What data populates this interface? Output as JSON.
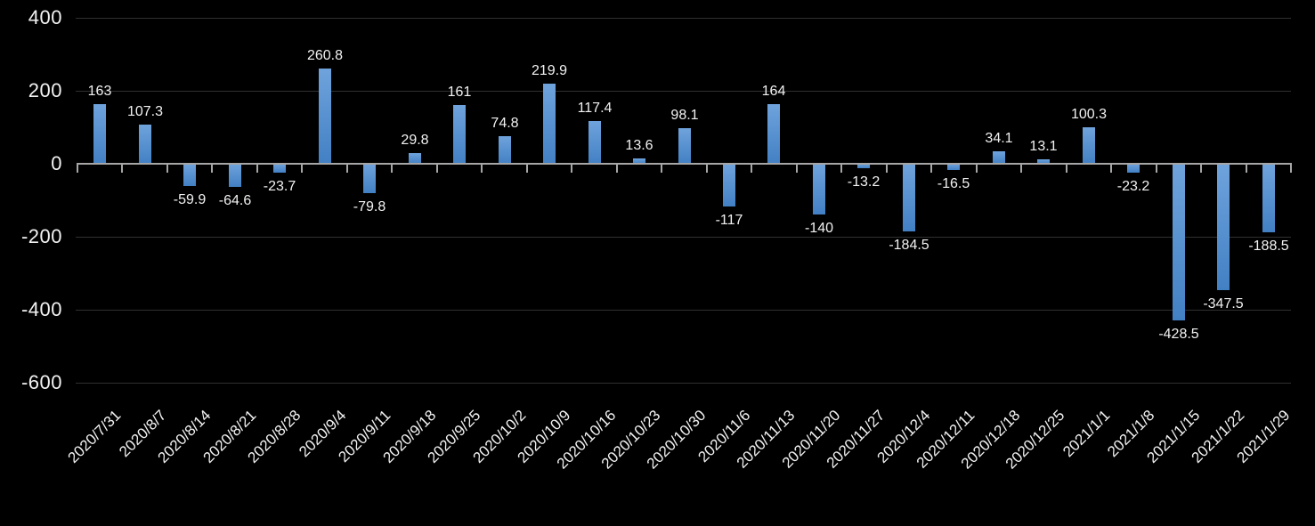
{
  "chart_data": {
    "type": "bar",
    "title": "",
    "xlabel": "",
    "ylabel": "",
    "legend_position": "none",
    "grid": true,
    "ylim": [
      -600,
      400
    ],
    "yticks": [
      400,
      200,
      0,
      -200,
      -400,
      -600
    ],
    "ytick_labels": [
      "400",
      "200",
      "0",
      "-200",
      "-400",
      "-600"
    ],
    "categories": [
      "2020/7/31",
      "2020/8/7",
      "2020/8/14",
      "2020/8/21",
      "2020/8/28",
      "2020/9/4",
      "2020/9/11",
      "2020/9/18",
      "2020/9/25",
      "2020/10/2",
      "2020/10/9",
      "2020/10/16",
      "2020/10/23",
      "2020/10/30",
      "2020/11/6",
      "2020/11/13",
      "2020/11/20",
      "2020/11/27",
      "2020/12/4",
      "2020/12/11",
      "2020/12/18",
      "2020/12/25",
      "2021/1/1",
      "2021/1/8",
      "2021/1/15",
      "2021/1/22",
      "2021/1/29"
    ],
    "values": [
      163,
      107.3,
      -59.9,
      -64.6,
      -23.7,
      260.8,
      -79.8,
      29.8,
      161,
      74.8,
      219.9,
      117.4,
      13.6,
      98.1,
      -117,
      164,
      -140,
      -13.2,
      -184.5,
      -16.5,
      34.1,
      13.1,
      100.3,
      -23.2,
      -428.5,
      -347.5,
      -188.5
    ],
    "data_labels": [
      "163",
      "107.3",
      "-59.9",
      "-64.6",
      "-23.7",
      "260.8",
      "-79.8",
      "29.8",
      "161",
      "74.8",
      "219.9",
      "117.4",
      "13.6",
      "98.1",
      "-117",
      "164",
      "-140",
      "-13.2",
      "-184.5",
      "-16.5",
      "34.1",
      "13.1",
      "100.3",
      "-23.2",
      "-428.5",
      "-347.5",
      "-188.5"
    ],
    "colors": {
      "background": "#000000",
      "bar_gradient_top": "#6fa3dc",
      "bar_gradient_bottom": "#4280c4",
      "gridline": "#303030",
      "axis_line": "#a6a6a6",
      "text": "#f2f2f2"
    }
  }
}
